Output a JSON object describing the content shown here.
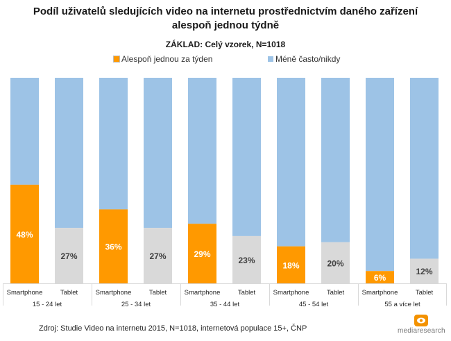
{
  "chart_data": {
    "type": "bar",
    "stacked": true,
    "title": "Podíl uživatelů sledujících video na internetu prostřednictvím daného zařízení alespoň jednou týdně",
    "title_lines": [
      "Podíl uživatelů sledujících video na internetu prostřednictvím daného zařízení",
      "alespoň jednou týdně"
    ],
    "subtitle": "ZÁKLAD: Celý vzorek, N=1018",
    "legend": [
      {
        "label": "Alespoň jednou za týden",
        "color": "#FF9900"
      },
      {
        "label": "Méně často/nikdy",
        "color": "#9DC3E6"
      }
    ],
    "legend_position": "top",
    "groups": [
      "15 - 24 let",
      "25 - 34 let",
      "35 - 44 let",
      "45 - 54 let",
      "55 a více let"
    ],
    "devices": [
      "Smartphone",
      "Tablet"
    ],
    "series": [
      {
        "name": "Alespoň jednou za týden",
        "device": "Smartphone",
        "values": [
          48,
          36,
          29,
          18,
          6
        ],
        "labels": [
          "48%",
          "36%",
          "29%",
          "18%",
          "6%"
        ]
      },
      {
        "name": "Alespoň jednou za týden",
        "device": "Tablet",
        "values": [
          27,
          27,
          23,
          20,
          12
        ],
        "labels": [
          "27%",
          "27%",
          "23%",
          "20%",
          "12%"
        ]
      }
    ],
    "ylim": [
      0,
      100
    ],
    "colors": {
      "smartphone_weekly": "#FF9900",
      "tablet_weekly": "#D9D9D9",
      "rest": "#9DC3E6",
      "label_on_orange": "#FFFFFF",
      "label_on_gray": "#404040",
      "axis": "#D9D9D9"
    },
    "grid": false
  },
  "footer": {
    "source": "Zdroj:  Studie Video na internetu 2015, N=1018, internetová populace 15+, ČNP"
  },
  "logo": {
    "text": "mediaresearch"
  }
}
